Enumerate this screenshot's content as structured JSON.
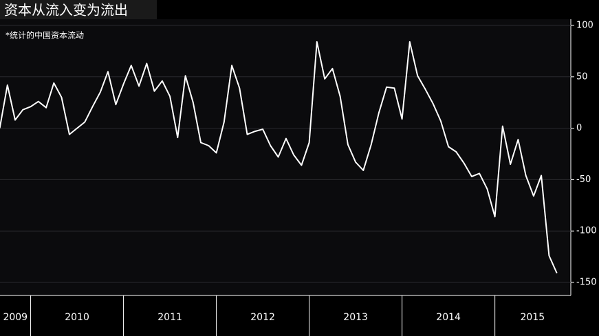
{
  "chart_data": {
    "type": "line",
    "title": "资本从流入变为流出",
    "subtitle": "*统计的中国资本流动",
    "x": [
      2009.667,
      2009.75,
      2009.833,
      2009.917,
      2010.0,
      2010.083,
      2010.167,
      2010.25,
      2010.333,
      2010.417,
      2010.5,
      2010.583,
      2010.667,
      2010.75,
      2010.833,
      2010.917,
      2011.0,
      2011.083,
      2011.167,
      2011.25,
      2011.333,
      2011.417,
      2011.5,
      2011.583,
      2011.667,
      2011.75,
      2011.833,
      2011.917,
      2012.0,
      2012.083,
      2012.167,
      2012.25,
      2012.333,
      2012.417,
      2012.5,
      2012.583,
      2012.667,
      2012.75,
      2012.833,
      2012.917,
      2013.0,
      2013.083,
      2013.167,
      2013.25,
      2013.333,
      2013.417,
      2013.5,
      2013.583,
      2013.667,
      2013.75,
      2013.833,
      2013.917,
      2014.0,
      2014.083,
      2014.167,
      2014.25,
      2014.333,
      2014.417,
      2014.5,
      2014.583,
      2014.667,
      2014.75,
      2014.833,
      2014.917,
      2015.0,
      2015.083,
      2015.167,
      2015.25,
      2015.333,
      2015.417,
      2015.5,
      2015.583,
      2015.667
    ],
    "values": [
      0,
      42,
      8,
      18,
      21,
      26,
      20,
      44,
      30,
      -6,
      0,
      6,
      21,
      35,
      55,
      23,
      43,
      61,
      41,
      63,
      36,
      46,
      31,
      -9,
      51,
      25,
      -14,
      -17,
      -24,
      6,
      61,
      39,
      -6,
      -3,
      -1,
      -17,
      -28,
      -10,
      -26,
      -36,
      -14,
      84,
      48,
      58,
      31,
      -16,
      -33,
      -41,
      -16,
      15,
      40,
      39,
      9,
      84,
      51,
      38,
      24,
      7,
      -18,
      -23,
      -34,
      -47,
      -44,
      -59,
      -86,
      2,
      -35,
      -11,
      -46,
      -66,
      -46,
      -124,
      -141
    ],
    "color": "#ffffff",
    "xlim": [
      2009.67,
      2015.81
    ],
    "xticks": [
      2010,
      2011,
      2012,
      2013,
      2014,
      2015
    ],
    "year_labels": [
      "2009",
      "2010",
      "2011",
      "2012",
      "2013",
      "2014",
      "2015"
    ],
    "ylim": [
      -150,
      100
    ],
    "yticks": [
      100,
      50,
      0,
      -50,
      -100,
      -150
    ],
    "grid": true
  }
}
